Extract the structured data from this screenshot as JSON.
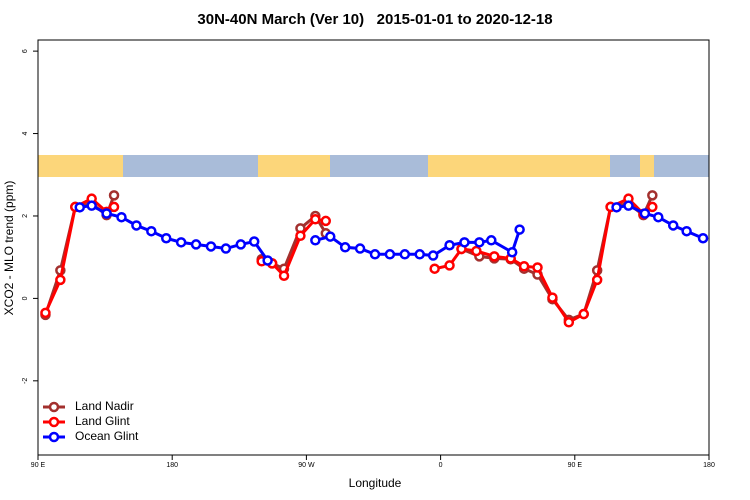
{
  "chart_data": {
    "type": "line",
    "title": "30N-40N March (Ver 10)   2015-01-01 to 2020-12-18",
    "x_label": "Longitude",
    "y_label": "XCO2 - MLO trend (ppm)",
    "xlim": [
      90,
      540
    ],
    "xticks": [
      {
        "value": 90,
        "label": "90 E"
      },
      180,
      {
        "value": 270,
        "label": "90 W"
      },
      {
        "value": 360,
        "label": "0"
      },
      {
        "value": 450,
        "label": "90 E"
      },
      {
        "value": 540,
        "label": "180"
      }
    ],
    "ylim": [
      -3.8,
      6.27
    ],
    "yticks": [
      -2,
      0,
      2,
      4,
      6
    ],
    "legend": "bottom-left",
    "series": [
      {
        "name": "Land Nadir",
        "color": "#a3302e",
        "x": [
          95,
          105,
          115,
          126,
          136,
          141,
          null,
          240,
          247,
          255,
          266,
          276,
          283,
          null,
          374,
          386,
          396,
          407,
          416,
          425,
          435,
          446,
          456,
          465,
          474,
          486,
          496,
          502
        ],
        "values": [
          -0.4,
          0.68,
          2.22,
          2.3,
          2.02,
          2.5,
          null,
          0.95,
          0.85,
          0.72,
          1.7,
          2.0,
          1.58,
          null,
          1.2,
          1.02,
          0.97,
          0.95,
          0.72,
          0.58,
          -0.02,
          -0.52,
          -0.38,
          0.68,
          2.22,
          2.3,
          2.02,
          2.5
        ]
      },
      {
        "name": "Land Glint",
        "color": "#ff0000",
        "x": [
          95,
          105,
          115,
          126,
          136,
          141,
          null,
          240,
          247,
          255,
          266,
          276,
          283,
          null,
          356,
          366,
          374,
          384,
          396,
          407,
          416,
          425,
          435,
          446,
          456,
          465,
          474,
          486,
          496,
          502
        ],
        "values": [
          -0.35,
          0.45,
          2.22,
          2.42,
          2.1,
          2.22,
          null,
          0.9,
          0.85,
          0.55,
          1.52,
          1.92,
          1.88,
          null,
          0.72,
          0.8,
          1.2,
          1.15,
          1.02,
          0.97,
          0.78,
          0.75,
          0.02,
          -0.58,
          -0.38,
          0.45,
          2.22,
          2.42,
          2.05,
          2.22
        ]
      },
      {
        "name": "Ocean Glint",
        "color": "#0000ff",
        "x": [
          118,
          126,
          136,
          146,
          156,
          166,
          176,
          186,
          196,
          206,
          216,
          226,
          235,
          244,
          null,
          276,
          286,
          296,
          306,
          316,
          326,
          336,
          346,
          355,
          366,
          376,
          386,
          394,
          408,
          413,
          null,
          478,
          486,
          497,
          506,
          516,
          525,
          536
        ],
        "values": [
          2.21,
          2.25,
          2.06,
          1.97,
          1.77,
          1.63,
          1.46,
          1.36,
          1.31,
          1.26,
          1.21,
          1.31,
          1.38,
          0.92,
          null,
          1.41,
          1.5,
          1.24,
          1.21,
          1.07,
          1.07,
          1.07,
          1.07,
          1.04,
          1.29,
          1.36,
          1.36,
          1.41,
          1.12,
          1.67,
          null,
          2.21,
          2.25,
          2.06,
          1.97,
          1.77,
          1.63,
          1.46
        ]
      }
    ]
  }
}
